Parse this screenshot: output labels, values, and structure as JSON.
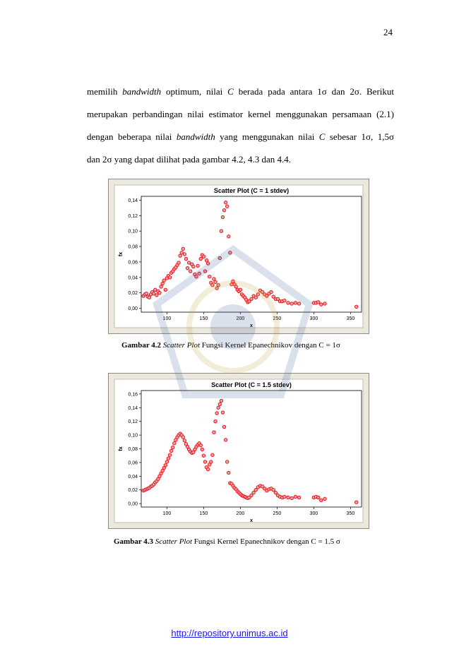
{
  "page_number": "24",
  "paragraph": {
    "line1": [
      "memilih ",
      "bandwidth",
      " optimum, nilai ",
      "C",
      " berada pada antara 1σ dan 2σ. Berikut"
    ],
    "line2": "merupakan perbandingan nilai estimator kernel menggunakan persamaan (2.1)",
    "line3": [
      "dengan beberapa nilai ",
      "bandwidth",
      " yang menggunakan nilai ",
      "C",
      " sebesar  1σ,  1,5σ"
    ],
    "line4": "dan  2σ  yang dapat dilihat pada gambar 4.2, 4.3 dan 4.4."
  },
  "figures": [
    {
      "caption": {
        "label": "Gambar 4.2",
        "italic": "Scatter Plot",
        "text": " Fungsi Kernel Epanechnikov dengan C = 1σ"
      }
    },
    {
      "caption": {
        "label": "Gambar 4.3",
        "italic": "Scatter Plot",
        "text": " Fungsi Kernel Epanechnikov dengan C = 1.5 σ"
      }
    }
  ],
  "chart_data": [
    {
      "type": "scatter",
      "title": "Scatter Plot (C = 1 stdev)",
      "xlabel": "x",
      "ylabel": "fx",
      "xlim": [
        65,
        365
      ],
      "ylim": [
        -0.005,
        0.145
      ],
      "xticks": [
        100,
        150,
        200,
        250,
        300,
        350
      ],
      "yticks": [
        "0,00",
        "0,02",
        "0,04",
        "0,06",
        "0,08",
        "0,10",
        "0,12",
        "0,14"
      ],
      "marker_color": "#e8141c",
      "x": [
        68,
        70,
        72,
        74,
        76,
        78,
        80,
        82,
        84,
        86,
        88,
        90,
        92,
        94,
        96,
        98,
        100,
        102,
        104,
        106,
        108,
        110,
        112,
        114,
        116,
        118,
        120,
        122,
        124,
        126,
        128,
        130,
        132,
        134,
        136,
        138,
        140,
        142,
        144,
        146,
        148,
        150,
        152,
        154,
        156,
        158,
        160,
        162,
        164,
        166,
        168,
        170,
        172,
        174,
        176,
        178,
        180,
        182,
        184,
        186,
        188,
        190,
        192,
        194,
        196,
        198,
        200,
        202,
        204,
        206,
        208,
        210,
        212,
        215,
        218,
        221,
        224,
        227,
        230,
        233,
        236,
        239,
        242,
        245,
        248,
        251,
        254,
        257,
        260,
        265,
        270,
        275,
        280,
        300,
        303,
        306,
        310,
        315,
        358
      ],
      "y": [
        0.016,
        0.018,
        0.019,
        0.015,
        0.014,
        0.018,
        0.021,
        0.019,
        0.024,
        0.017,
        0.022,
        0.02,
        0.028,
        0.032,
        0.036,
        0.024,
        0.039,
        0.042,
        0.04,
        0.046,
        0.048,
        0.051,
        0.053,
        0.056,
        0.059,
        0.068,
        0.072,
        0.077,
        0.07,
        0.064,
        0.052,
        0.059,
        0.048,
        0.057,
        0.054,
        0.044,
        0.041,
        0.055,
        0.045,
        0.064,
        0.069,
        0.067,
        0.048,
        0.062,
        0.058,
        0.041,
        0.033,
        0.03,
        0.038,
        0.034,
        0.026,
        0.03,
        0.065,
        0.1,
        0.118,
        0.127,
        0.137,
        0.132,
        0.093,
        0.072,
        0.031,
        0.035,
        0.031,
        0.028,
        0.024,
        0.022,
        0.024,
        0.018,
        0.016,
        0.014,
        0.011,
        0.008,
        0.009,
        0.012,
        0.016,
        0.014,
        0.018,
        0.023,
        0.021,
        0.018,
        0.016,
        0.019,
        0.021,
        0.015,
        0.012,
        0.012,
        0.009,
        0.009,
        0.01,
        0.007,
        0.006,
        0.007,
        0.006,
        0.007,
        0.007,
        0.008,
        0.005,
        0.006,
        0.002
      ]
    },
    {
      "type": "scatter",
      "title": "Scatter Plot (C = 1.5 stdev)",
      "xlabel": "x",
      "ylabel": "fx",
      "xlim": [
        65,
        365
      ],
      "ylim": [
        -0.005,
        0.165
      ],
      "xticks": [
        100,
        150,
        200,
        250,
        300,
        350
      ],
      "yticks": [
        "0,00",
        "0,02",
        "0,04",
        "0,06",
        "0,08",
        "0,10",
        "0,12",
        "0,14",
        "0,16"
      ],
      "marker_color": "#e8141c",
      "x": [
        68,
        70,
        72,
        74,
        76,
        78,
        80,
        82,
        84,
        86,
        88,
        90,
        92,
        94,
        96,
        98,
        100,
        102,
        104,
        106,
        108,
        110,
        112,
        114,
        116,
        118,
        120,
        122,
        124,
        126,
        128,
        130,
        132,
        134,
        136,
        138,
        140,
        142,
        144,
        146,
        148,
        150,
        152,
        154,
        156,
        158,
        160,
        162,
        164,
        166,
        168,
        170,
        172,
        174,
        176,
        178,
        180,
        182,
        184,
        186,
        188,
        190,
        192,
        194,
        196,
        198,
        200,
        202,
        204,
        206,
        208,
        210,
        212,
        215,
        218,
        221,
        224,
        227,
        230,
        233,
        236,
        239,
        242,
        245,
        248,
        251,
        254,
        257,
        260,
        265,
        270,
        275,
        280,
        300,
        303,
        306,
        310,
        315,
        358
      ],
      "y": [
        0.019,
        0.02,
        0.021,
        0.022,
        0.023,
        0.025,
        0.026,
        0.028,
        0.031,
        0.033,
        0.036,
        0.04,
        0.044,
        0.048,
        0.052,
        0.056,
        0.061,
        0.066,
        0.071,
        0.077,
        0.082,
        0.088,
        0.093,
        0.097,
        0.1,
        0.102,
        0.1,
        0.097,
        0.092,
        0.087,
        0.083,
        0.079,
        0.076,
        0.074,
        0.075,
        0.079,
        0.083,
        0.086,
        0.088,
        0.085,
        0.079,
        0.07,
        0.061,
        0.053,
        0.05,
        0.057,
        0.061,
        0.071,
        0.104,
        0.12,
        0.132,
        0.14,
        0.145,
        0.15,
        0.133,
        0.112,
        0.093,
        0.061,
        0.045,
        0.03,
        0.029,
        0.026,
        0.023,
        0.021,
        0.018,
        0.016,
        0.014,
        0.012,
        0.011,
        0.01,
        0.009,
        0.008,
        0.009,
        0.012,
        0.016,
        0.02,
        0.024,
        0.026,
        0.025,
        0.022,
        0.019,
        0.021,
        0.022,
        0.02,
        0.016,
        0.012,
        0.01,
        0.009,
        0.01,
        0.009,
        0.008,
        0.01,
        0.009,
        0.009,
        0.01,
        0.009,
        0.005,
        0.007,
        0.002
      ]
    }
  ],
  "footer": {
    "url": "http://repository.unimus.ac.id"
  }
}
